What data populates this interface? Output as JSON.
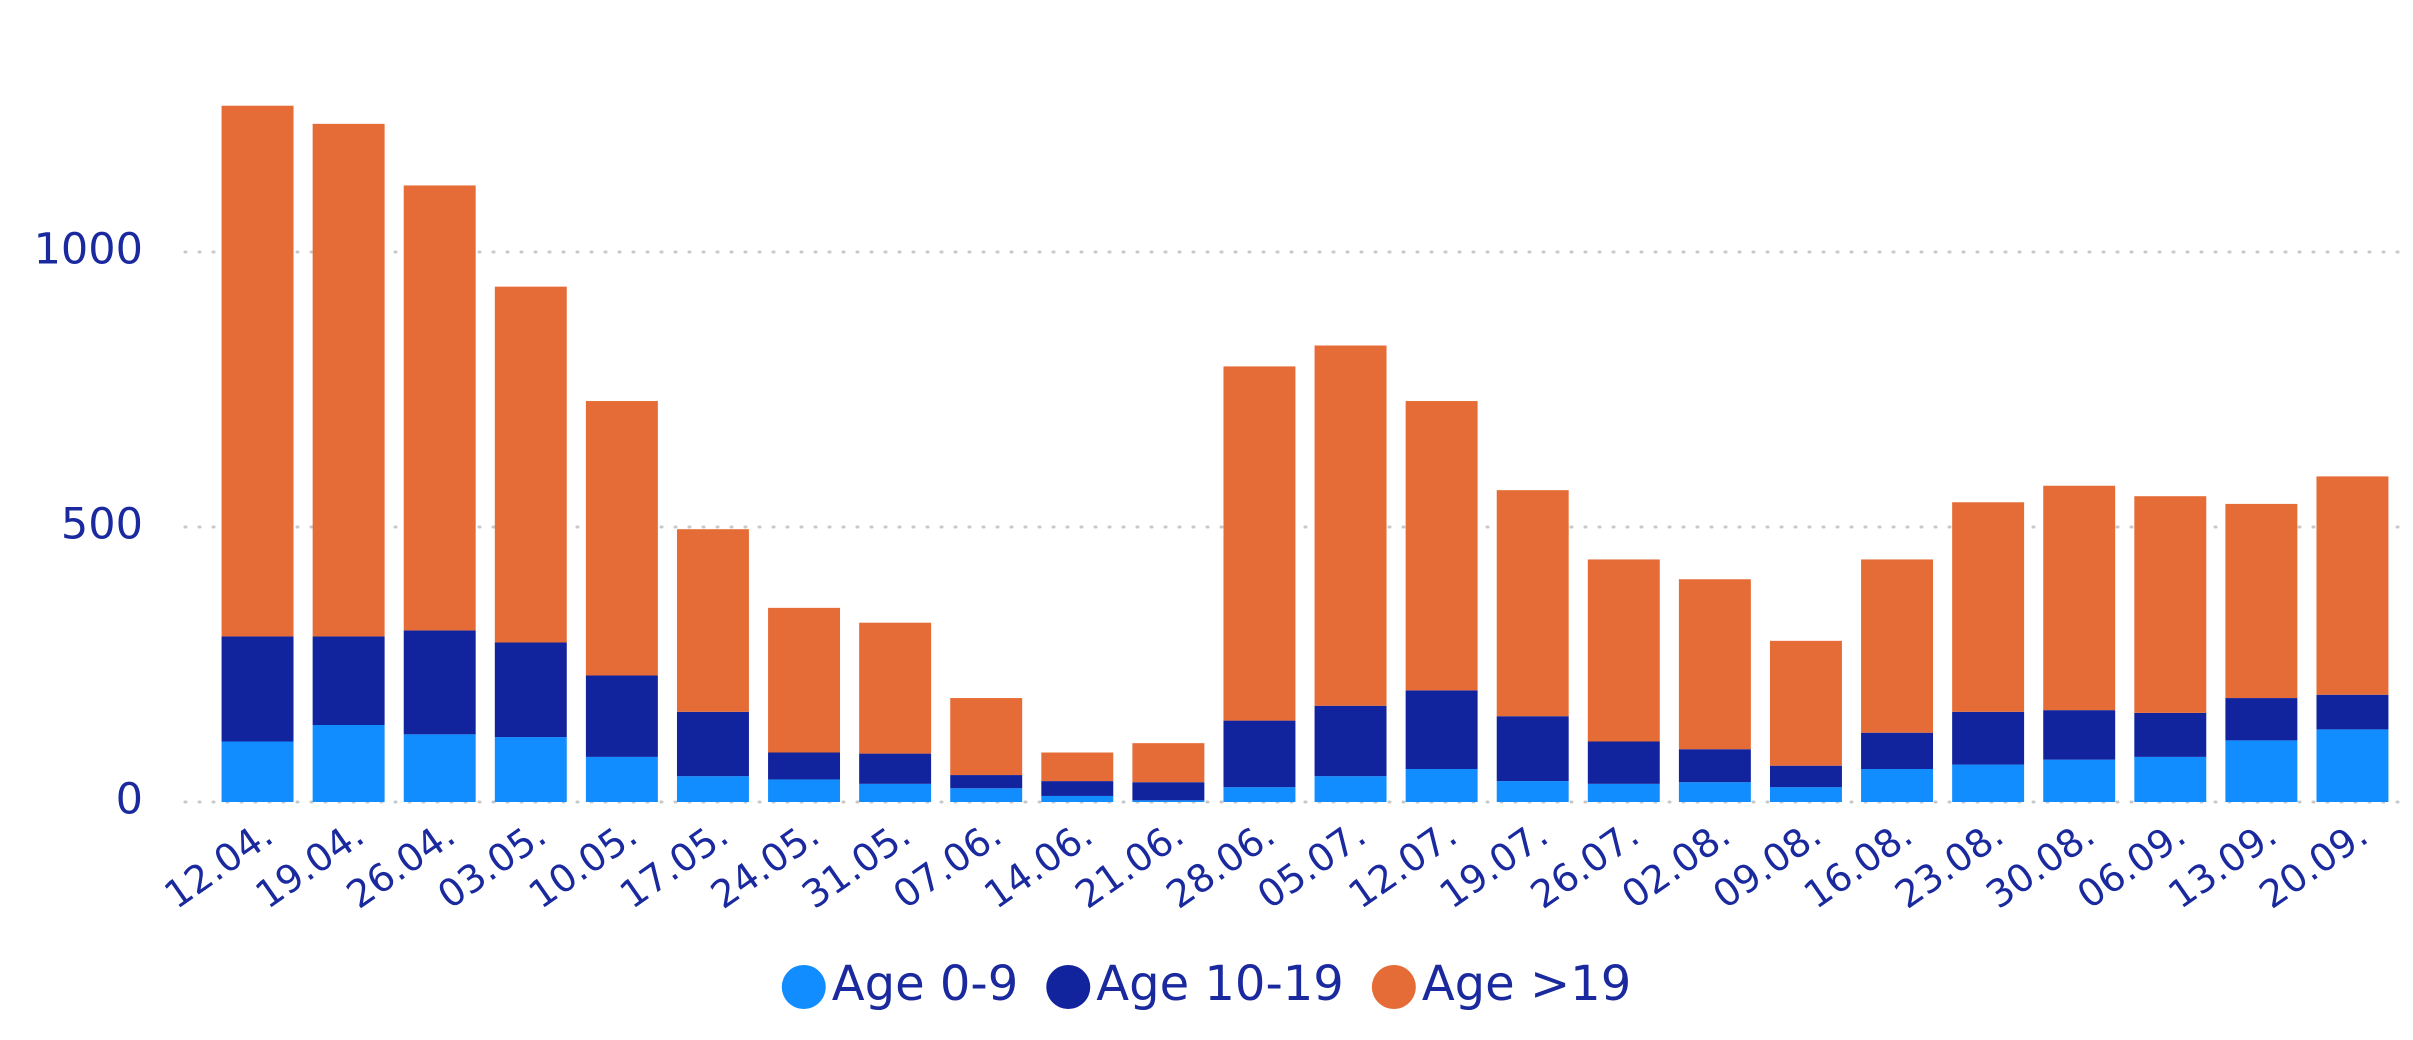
{
  "chart_data": {
    "type": "stacked_bar",
    "categories": [
      "12.04.",
      "19.04.",
      "26.04.",
      "03.05.",
      "10.05.",
      "17.05.",
      "24.05.",
      "31.05.",
      "07.06.",
      "14.06.",
      "21.06.",
      "28.06.",
      "05.07.",
      "12.07.",
      "19.07.",
      "26.07.",
      "02.08.",
      "09.08.",
      "16.08.",
      "23.08.",
      "30.08.",
      "06.09.",
      "13.09.",
      "20.09."
    ],
    "series": [
      {
        "name": "Age 0-9",
        "color": "#118DFF",
        "values": [
          110,
          140,
          123,
          118,
          82,
          47,
          41,
          33,
          25,
          11,
          3,
          27,
          47,
          60,
          38,
          33,
          36,
          27,
          60,
          68,
          77,
          82,
          112,
          132
        ]
      },
      {
        "name": "Age 10-19",
        "color": "#12239E",
        "values": [
          191,
          161,
          189,
          172,
          148,
          117,
          49,
          55,
          24,
          27,
          33,
          121,
          128,
          143,
          118,
          77,
          60,
          39,
          66,
          96,
          90,
          80,
          77,
          63
        ]
      },
      {
        "name": "Age >19",
        "color": "#E66C37",
        "values": [
          965,
          932,
          809,
          647,
          499,
          332,
          263,
          238,
          140,
          52,
          71,
          644,
          655,
          526,
          411,
          331,
          309,
          227,
          315,
          381,
          408,
          394,
          353,
          397
        ]
      }
    ],
    "ylim": [
      0,
      1300
    ],
    "yticks": [
      0,
      500,
      1000
    ],
    "grid": true
  }
}
